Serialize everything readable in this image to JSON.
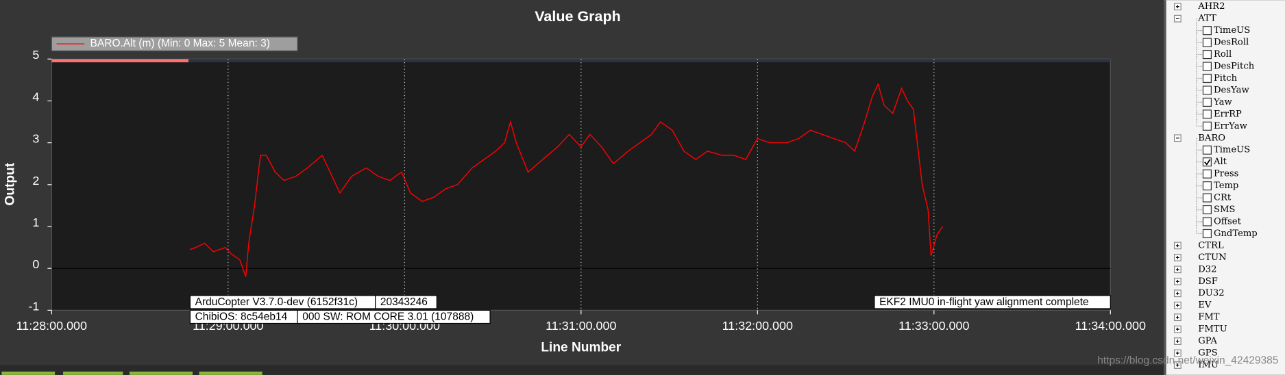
{
  "chart_data": {
    "type": "line",
    "title": "Value Graph",
    "x_label": "Line Number",
    "y_label": "Output",
    "x": [
      "11:28:47",
      "11:28:49",
      "11:28:52",
      "11:28:55",
      "11:28:59",
      "11:29:01",
      "11:29:04",
      "11:29:06",
      "11:29:07",
      "11:29:09",
      "11:29:11",
      "11:29:13",
      "11:29:16",
      "11:29:19",
      "11:29:23",
      "11:29:27",
      "11:29:32",
      "11:29:34",
      "11:29:38",
      "11:29:42",
      "11:29:47",
      "11:29:51",
      "11:29:55",
      "11:29:59",
      "11:30:02",
      "11:30:06",
      "11:30:10",
      "11:30:14",
      "11:30:18",
      "11:30:23",
      "11:30:27",
      "11:30:31",
      "11:30:34",
      "11:30:36",
      "11:30:38",
      "11:30:42",
      "11:30:47",
      "11:30:52",
      "11:30:56",
      "11:31:00",
      "11:31:03",
      "11:31:07",
      "11:31:11",
      "11:31:16",
      "11:31:20",
      "11:31:24",
      "11:31:27",
      "11:31:31",
      "11:31:35",
      "11:31:39",
      "11:31:43",
      "11:31:48",
      "11:31:52",
      "11:31:56",
      "11:32:00",
      "11:32:04",
      "11:32:10",
      "11:32:14",
      "11:32:18",
      "11:32:22",
      "11:32:26",
      "11:32:30",
      "11:32:33",
      "11:32:36",
      "11:32:39",
      "11:32:41",
      "11:32:43",
      "11:32:46",
      "11:32:49",
      "11:32:51",
      "11:32:53",
      "11:32:54",
      "11:32:56",
      "11:32:58",
      "11:32:59",
      "11:33:01",
      "11:33:02",
      "11:33:03"
    ],
    "series": [
      {
        "name": "BARO.Alt (m) (Min: 0 Max: 5 Mean: 3)",
        "color": "#ff0000",
        "values": [
          0.45,
          0.5,
          0.6,
          0.4,
          0.5,
          0.35,
          0.2,
          -0.2,
          0.6,
          1.5,
          2.7,
          2.7,
          2.3,
          2.1,
          2.2,
          2.4,
          2.7,
          2.4,
          1.8,
          2.2,
          2.4,
          2.2,
          2.1,
          2.3,
          1.8,
          1.6,
          1.7,
          1.9,
          2.0,
          2.4,
          2.6,
          2.8,
          3.0,
          3.5,
          3.0,
          2.3,
          2.6,
          2.9,
          3.2,
          2.9,
          3.2,
          2.9,
          2.5,
          2.8,
          3.0,
          3.2,
          3.5,
          3.3,
          2.8,
          2.6,
          2.8,
          2.7,
          2.7,
          2.6,
          3.1,
          3.0,
          3.0,
          3.1,
          3.3,
          3.2,
          3.1,
          3.0,
          2.8,
          3.4,
          4.1,
          4.4,
          3.9,
          3.7,
          4.3,
          4.0,
          3.8,
          3.2,
          2.0,
          1.4,
          0.3,
          0.8,
          0.9,
          1.0
        ]
      }
    ],
    "xlim": [
      "11:28:00.000",
      "11:34:00.000"
    ],
    "xticks": [
      "11:28:00.000",
      "11:29:00.000",
      "11:30:00.000",
      "11:31:00.000",
      "11:32:00.000",
      "11:33:00.000",
      "11:34:00.000"
    ],
    "ylim": [
      -1,
      5
    ],
    "yticks": [
      -1,
      0,
      1,
      2,
      3,
      4,
      5
    ],
    "grid": true,
    "legend": "top-left",
    "annotations": [
      "ArduCopter V3.7.0-dev (6152f31c)",
      "20343246",
      "ChibiOS: 8c54eb14",
      "000 SW: ROM CORE 3.01 (107888)",
      "EKF2 IMU0 in-flight yaw alignment complete"
    ]
  },
  "tree": [
    {
      "label": "AHR2",
      "expanded": false,
      "children": []
    },
    {
      "label": "ATT",
      "expanded": true,
      "children": [
        {
          "label": "TimeUS",
          "checked": false
        },
        {
          "label": "DesRoll",
          "checked": false
        },
        {
          "label": "Roll",
          "checked": false
        },
        {
          "label": "DesPitch",
          "checked": false
        },
        {
          "label": "Pitch",
          "checked": false
        },
        {
          "label": "DesYaw",
          "checked": false
        },
        {
          "label": "Yaw",
          "checked": false
        },
        {
          "label": "ErrRP",
          "checked": false
        },
        {
          "label": "ErrYaw",
          "checked": false
        }
      ]
    },
    {
      "label": "BARO",
      "expanded": true,
      "children": [
        {
          "label": "TimeUS",
          "checked": false
        },
        {
          "label": "Alt",
          "checked": true
        },
        {
          "label": "Press",
          "checked": false
        },
        {
          "label": "Temp",
          "checked": false
        },
        {
          "label": "CRt",
          "checked": false
        },
        {
          "label": "SMS",
          "checked": false
        },
        {
          "label": "Offset",
          "checked": false
        },
        {
          "label": "GndTemp",
          "checked": false
        }
      ]
    },
    {
      "label": "CTRL",
      "expanded": false,
      "children": []
    },
    {
      "label": "CTUN",
      "expanded": false,
      "children": []
    },
    {
      "label": "D32",
      "expanded": false,
      "children": []
    },
    {
      "label": "DSF",
      "expanded": false,
      "children": []
    },
    {
      "label": "DU32",
      "expanded": false,
      "children": []
    },
    {
      "label": "EV",
      "expanded": false,
      "children": []
    },
    {
      "label": "FMT",
      "expanded": false,
      "children": []
    },
    {
      "label": "FMTU",
      "expanded": false,
      "children": []
    },
    {
      "label": "GPA",
      "expanded": false,
      "children": []
    },
    {
      "label": "GPS",
      "expanded": false,
      "children": []
    },
    {
      "label": "IMU",
      "expanded": false,
      "children": []
    }
  ],
  "watermark": "https://blog.csdn.net/weixin_42429385"
}
